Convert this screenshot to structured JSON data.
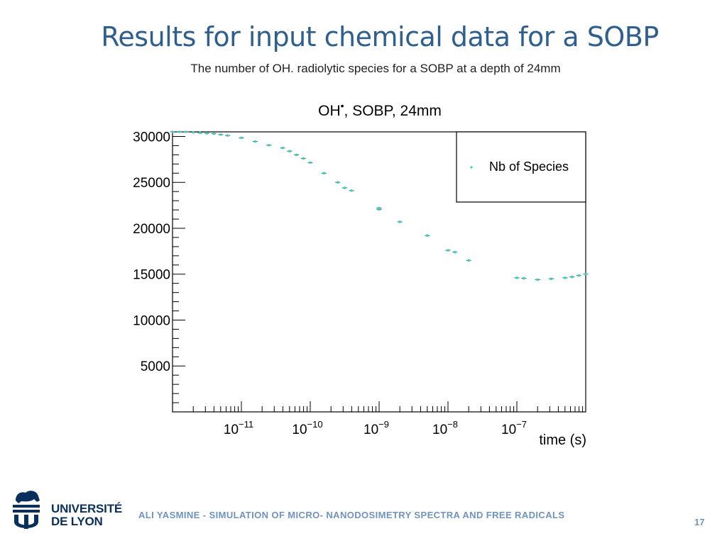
{
  "slide": {
    "title": "Results for input chemical data for a SOBP",
    "subtitle": "The number of OH. radiolytic species for a SOBP at a depth of 24mm"
  },
  "footer": {
    "author_line": "ALI YASMINE - SIMULATION OF MICRO- NANODOSIMETRY SPECTRA AND FREE RADICALS",
    "page_number": "17"
  },
  "logo": {
    "line1": "UNIVERSITÉ",
    "line2": "DE LYON",
    "color": "#0b2f5c"
  },
  "chart_data": {
    "type": "scatter",
    "title": "OH•, SOBP, 24mm",
    "xlabel": "time (s)",
    "ylabel": "",
    "xscale": "log",
    "xlim": [
      1e-12,
      1e-06
    ],
    "ylim": [
      0,
      30500
    ],
    "x_tick_labels": [
      "10^-11",
      "10^-10",
      "10^-9",
      "10^-8",
      "10^-7"
    ],
    "y_tick_labels": [
      "5000",
      "10000",
      "15000",
      "20000",
      "25000",
      "30000"
    ],
    "grid": false,
    "legend": {
      "position": "top-right",
      "entries": [
        "Nb of Species"
      ]
    },
    "marker_color": "#2fd3c0",
    "series": [
      {
        "name": "Nb of Species",
        "x": [
          1e-12,
          1.26e-12,
          1.58e-12,
          2e-12,
          2.51e-12,
          3.16e-12,
          3.98e-12,
          5.01e-12,
          6.31e-12,
          1e-11,
          1.58e-11,
          2.51e-11,
          3.98e-11,
          5.01e-11,
          6.31e-11,
          7.94e-11,
          1e-10,
          1.58e-10,
          2.51e-10,
          3.16e-10,
          3.98e-10,
          1e-09,
          1e-09,
          2e-09,
          5.01e-09,
          1e-08,
          1.26e-08,
          2e-08,
          1e-07,
          1.26e-07,
          2e-07,
          3.16e-07,
          5.01e-07,
          6.31e-07,
          7.94e-07,
          1e-06
        ],
        "y": [
          30500,
          30500,
          30500,
          30450,
          30400,
          30350,
          30300,
          30200,
          30100,
          29850,
          29450,
          29050,
          28750,
          28400,
          28000,
          27600,
          27150,
          26000,
          25000,
          24400,
          24100,
          22200,
          22050,
          20700,
          19200,
          17600,
          17400,
          16500,
          14600,
          14550,
          14400,
          14500,
          14600,
          14700,
          14850,
          15000
        ]
      }
    ]
  }
}
